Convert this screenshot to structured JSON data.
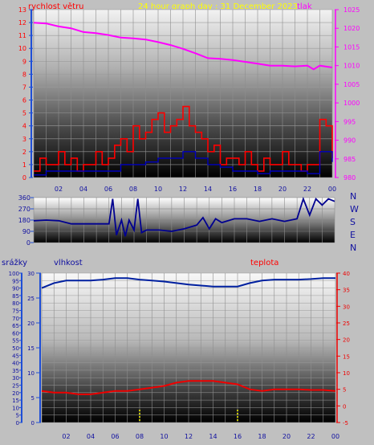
{
  "header": {
    "wind_label": "rychlost větru",
    "title": "24 hour graph day : 31 December 2023",
    "pressure_label": "tlak"
  },
  "colors": {
    "background": "#c0c0c0",
    "axis_blue": "#1f4fd6",
    "wind_red": "#ff0000",
    "wind_blue": "#0000c0",
    "pressure": "#ff00ff",
    "title_yellow": "#ffff00",
    "direction_blue": "#000090",
    "humidity_blue": "#0020a0",
    "temperature_red": "#ee0000",
    "rain_yellow": "#ffff00"
  },
  "chart_data": [
    {
      "type": "line",
      "name": "wind-pressure",
      "x_ticks": [
        "02",
        "04",
        "06",
        "08",
        "10",
        "12",
        "14",
        "16",
        "18",
        "20",
        "22",
        "00"
      ],
      "xlim": [
        0,
        24
      ],
      "left_axis": {
        "label": "rychlost větru",
        "ylim": [
          0,
          13
        ],
        "ticks": [
          0,
          1,
          2,
          3,
          4,
          5,
          6,
          7,
          8,
          9,
          10,
          11,
          12,
          13
        ]
      },
      "right_axis": {
        "label": "tlak",
        "ylim": [
          980,
          1025
        ],
        "ticks": [
          980,
          985,
          990,
          995,
          1000,
          1005,
          1010,
          1015,
          1020,
          1025
        ]
      },
      "pressure": {
        "x": [
          0,
          1,
          2,
          3,
          4,
          5,
          6,
          7,
          8,
          9,
          10,
          11,
          12,
          13,
          14,
          15,
          16,
          17,
          18,
          19,
          20,
          21,
          22,
          22.5,
          23,
          24
        ],
        "y": [
          1021.5,
          1021.3,
          1020.5,
          1020,
          1019,
          1018.7,
          1018.2,
          1017.5,
          1017.3,
          1017,
          1016.3,
          1015.5,
          1014.5,
          1013.3,
          1012,
          1011.8,
          1011.5,
          1011,
          1010.5,
          1010,
          1010,
          1009.8,
          1010,
          1009,
          1010,
          1009.5
        ]
      },
      "wind_gust": {
        "x": [
          0,
          0.5,
          1,
          1.5,
          2,
          2.5,
          3,
          3.5,
          4,
          4.5,
          5,
          5.5,
          6,
          6.5,
          7,
          7.5,
          8,
          8.5,
          9,
          9.5,
          10,
          10.5,
          11,
          11.5,
          12,
          12.5,
          13,
          13.5,
          14,
          14.5,
          15,
          15.5,
          16,
          16.5,
          17,
          17.5,
          18,
          18.5,
          19,
          19.5,
          20,
          20.5,
          21,
          21.5,
          22,
          22.5,
          23,
          23.5,
          24
        ],
        "y": [
          0.5,
          1.5,
          1,
          1,
          2,
          1,
          1.5,
          0.5,
          1,
          1,
          2,
          1,
          1.5,
          2.5,
          3,
          2,
          4,
          3,
          3.5,
          4.5,
          5,
          3.5,
          4,
          4.5,
          5.5,
          4,
          3.5,
          3,
          2,
          2.5,
          1,
          1.5,
          1.5,
          1,
          2,
          1,
          0.5,
          1.5,
          1,
          1,
          2,
          1,
          1,
          0.5,
          1,
          1,
          4.5,
          4,
          1.5
        ]
      },
      "wind_avg": {
        "x": [
          0,
          1,
          2,
          3,
          4,
          5,
          6,
          7,
          8,
          9,
          10,
          11,
          12,
          13,
          14,
          15,
          16,
          17,
          18,
          19,
          20,
          21,
          22,
          23,
          24
        ],
        "y": [
          0.2,
          0.5,
          0.5,
          0.5,
          0.5,
          0.5,
          0.5,
          1,
          1,
          1.2,
          1.5,
          1.5,
          2,
          1.5,
          1,
          0.8,
          0.5,
          0.5,
          0.3,
          0.5,
          0.5,
          0.5,
          0.3,
          2,
          1.2
        ]
      }
    },
    {
      "type": "line",
      "name": "wind-direction",
      "x_ticks": [
        "02",
        "04",
        "06",
        "08",
        "10",
        "12",
        "14",
        "16",
        "18",
        "20",
        "22",
        "00"
      ],
      "xlim": [
        0,
        24
      ],
      "left_ticks": [
        0,
        90,
        180,
        270,
        360
      ],
      "right_labels": [
        "N",
        "W",
        "S",
        "E",
        "N"
      ],
      "ylim": [
        0,
        360
      ],
      "direction": {
        "x": [
          0,
          1,
          2,
          3,
          4,
          5,
          6,
          6.3,
          6.6,
          7,
          7.3,
          7.6,
          8,
          8.3,
          8.6,
          9,
          10,
          11,
          12,
          13,
          13.5,
          14,
          14.5,
          15,
          16,
          17,
          18,
          19,
          20,
          21,
          21.5,
          22,
          22.5,
          23,
          23.5,
          24
        ],
        "y": [
          175,
          180,
          175,
          150,
          150,
          150,
          150,
          350,
          60,
          180,
          50,
          180,
          100,
          350,
          80,
          100,
          100,
          90,
          110,
          140,
          200,
          110,
          190,
          160,
          190,
          190,
          170,
          190,
          170,
          190,
          350,
          220,
          350,
          300,
          350,
          330
        ]
      }
    },
    {
      "type": "line",
      "name": "rain-humidity-temperature",
      "x_ticks": [
        "02",
        "04",
        "06",
        "08",
        "10",
        "12",
        "14",
        "16",
        "18",
        "20",
        "22",
        "00"
      ],
      "xlim": [
        0,
        24
      ],
      "left_axis": {
        "label": "srážky",
        "ticks": [
          0,
          5,
          10,
          15,
          20,
          25,
          30,
          35,
          40,
          45,
          50,
          55,
          60,
          65,
          70,
          75,
          80,
          85,
          90,
          95,
          100
        ],
        "ylim": [
          0,
          100
        ]
      },
      "humidity_axis": {
        "label": "vlhkost",
        "ticks": [
          0,
          5,
          10,
          15,
          20,
          25,
          30
        ],
        "ylim": [
          0,
          30
        ]
      },
      "right_axis": {
        "label": "teplota",
        "ticks": [
          -5,
          0,
          5,
          10,
          15,
          20,
          25,
          30,
          35,
          40
        ],
        "ylim": [
          -5,
          40
        ]
      },
      "humidity": {
        "x": [
          0,
          1,
          2,
          3,
          4,
          5,
          6,
          7,
          8,
          9,
          10,
          11,
          12,
          13,
          14,
          15,
          16,
          17,
          18,
          19,
          20,
          21,
          22,
          23,
          24
        ],
        "y": [
          27,
          28,
          28.5,
          28.5,
          28.5,
          28.7,
          29,
          29,
          28.7,
          28.5,
          28.3,
          28,
          27.7,
          27.5,
          27.3,
          27.3,
          27.3,
          28,
          28.5,
          28.7,
          28.7,
          28.7,
          28.8,
          29,
          29
        ]
      },
      "temperature": {
        "x": [
          0,
          1,
          2,
          3,
          4,
          5,
          6,
          7,
          8,
          9,
          10,
          11,
          12,
          13,
          14,
          15,
          16,
          17,
          18,
          19,
          20,
          21,
          22,
          23,
          24
        ],
        "y": [
          4.5,
          4,
          4,
          3.5,
          3.5,
          4,
          4.5,
          4.5,
          5,
          5.5,
          6,
          7,
          7.5,
          7.5,
          7.5,
          7,
          6.5,
          5,
          4.5,
          5,
          5,
          5,
          4.8,
          4.8,
          4.5
        ]
      },
      "rain_markers": [
        8,
        16
      ]
    }
  ]
}
